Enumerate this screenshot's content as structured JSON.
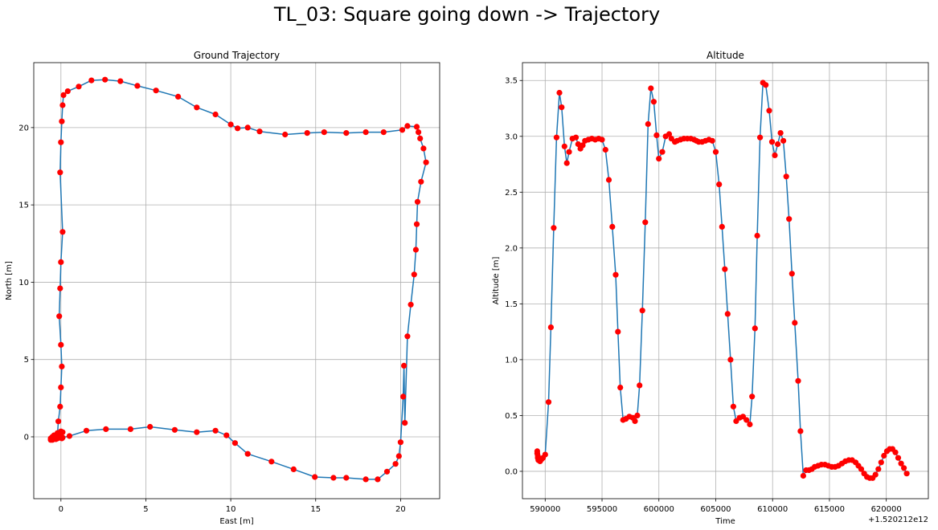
{
  "figure": {
    "title": "TL_03: Square going down -> Trajectory"
  },
  "colors": {
    "line": "#1f77b4",
    "marker": "#ff0000",
    "grid": "#b0b0b0"
  },
  "chart_data": [
    {
      "type": "line",
      "title": "Ground Trajectory",
      "xlabel": "East [m]",
      "ylabel": "North [m]",
      "xlim": [
        -1.6,
        22.3
      ],
      "ylim": [
        -4.0,
        24.2
      ],
      "xticks": [
        0,
        5,
        10,
        15,
        20
      ],
      "yticks": [
        0,
        5,
        10,
        15,
        20
      ],
      "grid": true,
      "marker": "o",
      "x": [
        -0.6,
        -0.55,
        -0.5,
        -0.4,
        -0.3,
        -0.2,
        -0.1,
        0.0,
        0.1,
        0.0,
        -0.2,
        -0.4,
        -0.5,
        -0.6,
        -0.5,
        -0.3,
        -0.1,
        0.05,
        0.1,
        0.5,
        1.5,
        2.65,
        4.1,
        5.25,
        6.7,
        8.0,
        9.1,
        9.75,
        10.25,
        11.0,
        12.4,
        13.7,
        14.95,
        16.05,
        16.8,
        17.95,
        18.65,
        19.2,
        19.7,
        19.9,
        20.0,
        20.15,
        20.2,
        20.25,
        20.4,
        20.6,
        20.8,
        20.9,
        20.95,
        21.0,
        21.2,
        21.5,
        21.35,
        21.15,
        21.05,
        20.95,
        20.4,
        20.1,
        19.0,
        17.95,
        16.8,
        15.5,
        14.5,
        13.2,
        11.7,
        11.0,
        10.4,
        10.0,
        9.1,
        8.0,
        6.9,
        5.6,
        4.5,
        3.5,
        2.6,
        1.8,
        1.05,
        0.4,
        0.15,
        0.1,
        0.05,
        0.0,
        -0.05,
        0.1,
        0.0,
        -0.05,
        -0.1,
        0.0,
        0.05,
        0.0,
        -0.05,
        -0.15,
        -0.2
      ],
      "y": [
        -0.2,
        -0.1,
        0.0,
        0.1,
        0.0,
        -0.1,
        0.1,
        0.2,
        0.3,
        0.35,
        0.2,
        0.1,
        0.0,
        -0.1,
        -0.2,
        -0.15,
        -0.05,
        -0.1,
        -0.05,
        0.05,
        0.4,
        0.5,
        0.5,
        0.65,
        0.45,
        0.3,
        0.4,
        0.1,
        -0.4,
        -1.1,
        -1.6,
        -2.1,
        -2.6,
        -2.65,
        -2.65,
        -2.75,
        -2.75,
        -2.25,
        -1.75,
        -1.25,
        -0.35,
        2.6,
        4.6,
        0.9,
        6.5,
        8.55,
        10.5,
        12.1,
        13.75,
        15.2,
        16.5,
        17.75,
        18.65,
        19.3,
        19.7,
        20.05,
        20.1,
        19.85,
        19.7,
        19.7,
        19.65,
        19.7,
        19.65,
        19.55,
        19.75,
        20.0,
        19.95,
        20.2,
        20.85,
        21.3,
        22.0,
        22.4,
        22.7,
        23.0,
        23.1,
        23.05,
        22.65,
        22.35,
        22.1,
        21.45,
        20.4,
        19.05,
        17.1,
        13.25,
        11.3,
        9.6,
        7.8,
        5.95,
        4.55,
        3.2,
        1.95,
        1.0,
        0.25
      ]
    },
    {
      "type": "line",
      "title": "Altitude",
      "xlabel": "Time",
      "ylabel": "Altitude [m]",
      "x_offset_label": "+1.520212e12",
      "xlim": [
        588000,
        623700
      ],
      "ylim": [
        -0.245,
        3.66
      ],
      "xticks": [
        590000,
        595000,
        600000,
        605000,
        610000,
        615000,
        620000
      ],
      "yticks": [
        0.0,
        0.5,
        1.0,
        1.5,
        2.0,
        2.5,
        3.0,
        3.5
      ],
      "ytick_labels": [
        "0.0",
        "0.5",
        "1.0",
        "1.5",
        "2.0",
        "2.5",
        "3.0",
        "3.5"
      ],
      "grid": true,
      "marker": "o",
      "x": [
        589300,
        589300,
        589350,
        589350,
        589400,
        589450,
        589500,
        589550,
        589600,
        589700,
        589800,
        590000,
        590300,
        590500,
        590750,
        591000,
        591250,
        591450,
        591700,
        591900,
        592100,
        592400,
        592700,
        592900,
        593100,
        593300,
        593500,
        593800,
        594100,
        594400,
        594700,
        595000,
        595300,
        595600,
        595900,
        596200,
        596400,
        596600,
        596850,
        597100,
        597400,
        597700,
        597900,
        598100,
        598300,
        598550,
        598800,
        599050,
        599300,
        599550,
        599800,
        600000,
        600300,
        600600,
        600900,
        601100,
        601400,
        601600,
        601900,
        602200,
        602500,
        602800,
        603100,
        603300,
        603500,
        603800,
        604100,
        604400,
        604700,
        605000,
        605300,
        605550,
        605800,
        606050,
        606300,
        606550,
        606800,
        607100,
        607400,
        607700,
        608000,
        608200,
        608450,
        608650,
        608900,
        609150,
        609400,
        609700,
        609950,
        610200,
        610450,
        610700,
        610950,
        611200,
        611450,
        611700,
        611950,
        612250,
        612450,
        612700,
        612950,
        613200,
        613450,
        613700,
        614000,
        614300,
        614600,
        614900,
        615200,
        615500,
        615800,
        616100,
        616400,
        616700,
        617000,
        617300,
        617550,
        617800,
        618050,
        618300,
        618550,
        618800,
        619050,
        619300,
        619550,
        619800,
        620050,
        620300,
        620550,
        620800,
        621050,
        621300,
        621550,
        621800
      ],
      "y": [
        0.18,
        0.16,
        0.14,
        0.12,
        0.1,
        0.11,
        0.1,
        0.09,
        0.1,
        0.11,
        0.12,
        0.15,
        0.62,
        1.29,
        2.18,
        2.99,
        3.39,
        3.26,
        2.91,
        2.76,
        2.86,
        2.98,
        2.99,
        2.93,
        2.89,
        2.92,
        2.96,
        2.97,
        2.98,
        2.97,
        2.98,
        2.97,
        2.88,
        2.61,
        2.19,
        1.76,
        1.25,
        0.75,
        0.46,
        0.47,
        0.49,
        0.48,
        0.45,
        0.5,
        0.77,
        1.44,
        2.23,
        3.11,
        3.43,
        3.31,
        3.01,
        2.8,
        2.86,
        3.0,
        3.02,
        2.98,
        2.95,
        2.96,
        2.97,
        2.98,
        2.98,
        2.98,
        2.97,
        2.96,
        2.95,
        2.95,
        2.96,
        2.97,
        2.96,
        2.86,
        2.57,
        2.19,
        1.81,
        1.41,
        1.0,
        0.58,
        0.45,
        0.48,
        0.49,
        0.46,
        0.42,
        0.67,
        1.28,
        2.11,
        2.99,
        3.48,
        3.46,
        3.23,
        2.95,
        2.83,
        2.93,
        3.03,
        2.96,
        2.64,
        2.26,
        1.77,
        1.33,
        0.81,
        0.36,
        -0.04,
        0.01,
        0.01,
        0.02,
        0.04,
        0.05,
        0.06,
        0.06,
        0.05,
        0.04,
        0.04,
        0.05,
        0.07,
        0.09,
        0.1,
        0.1,
        0.08,
        0.05,
        0.02,
        -0.02,
        -0.05,
        -0.06,
        -0.06,
        -0.03,
        0.02,
        0.08,
        0.14,
        0.18,
        0.2,
        0.2,
        0.17,
        0.12,
        0.07,
        0.03,
        -0.02
      ]
    }
  ]
}
